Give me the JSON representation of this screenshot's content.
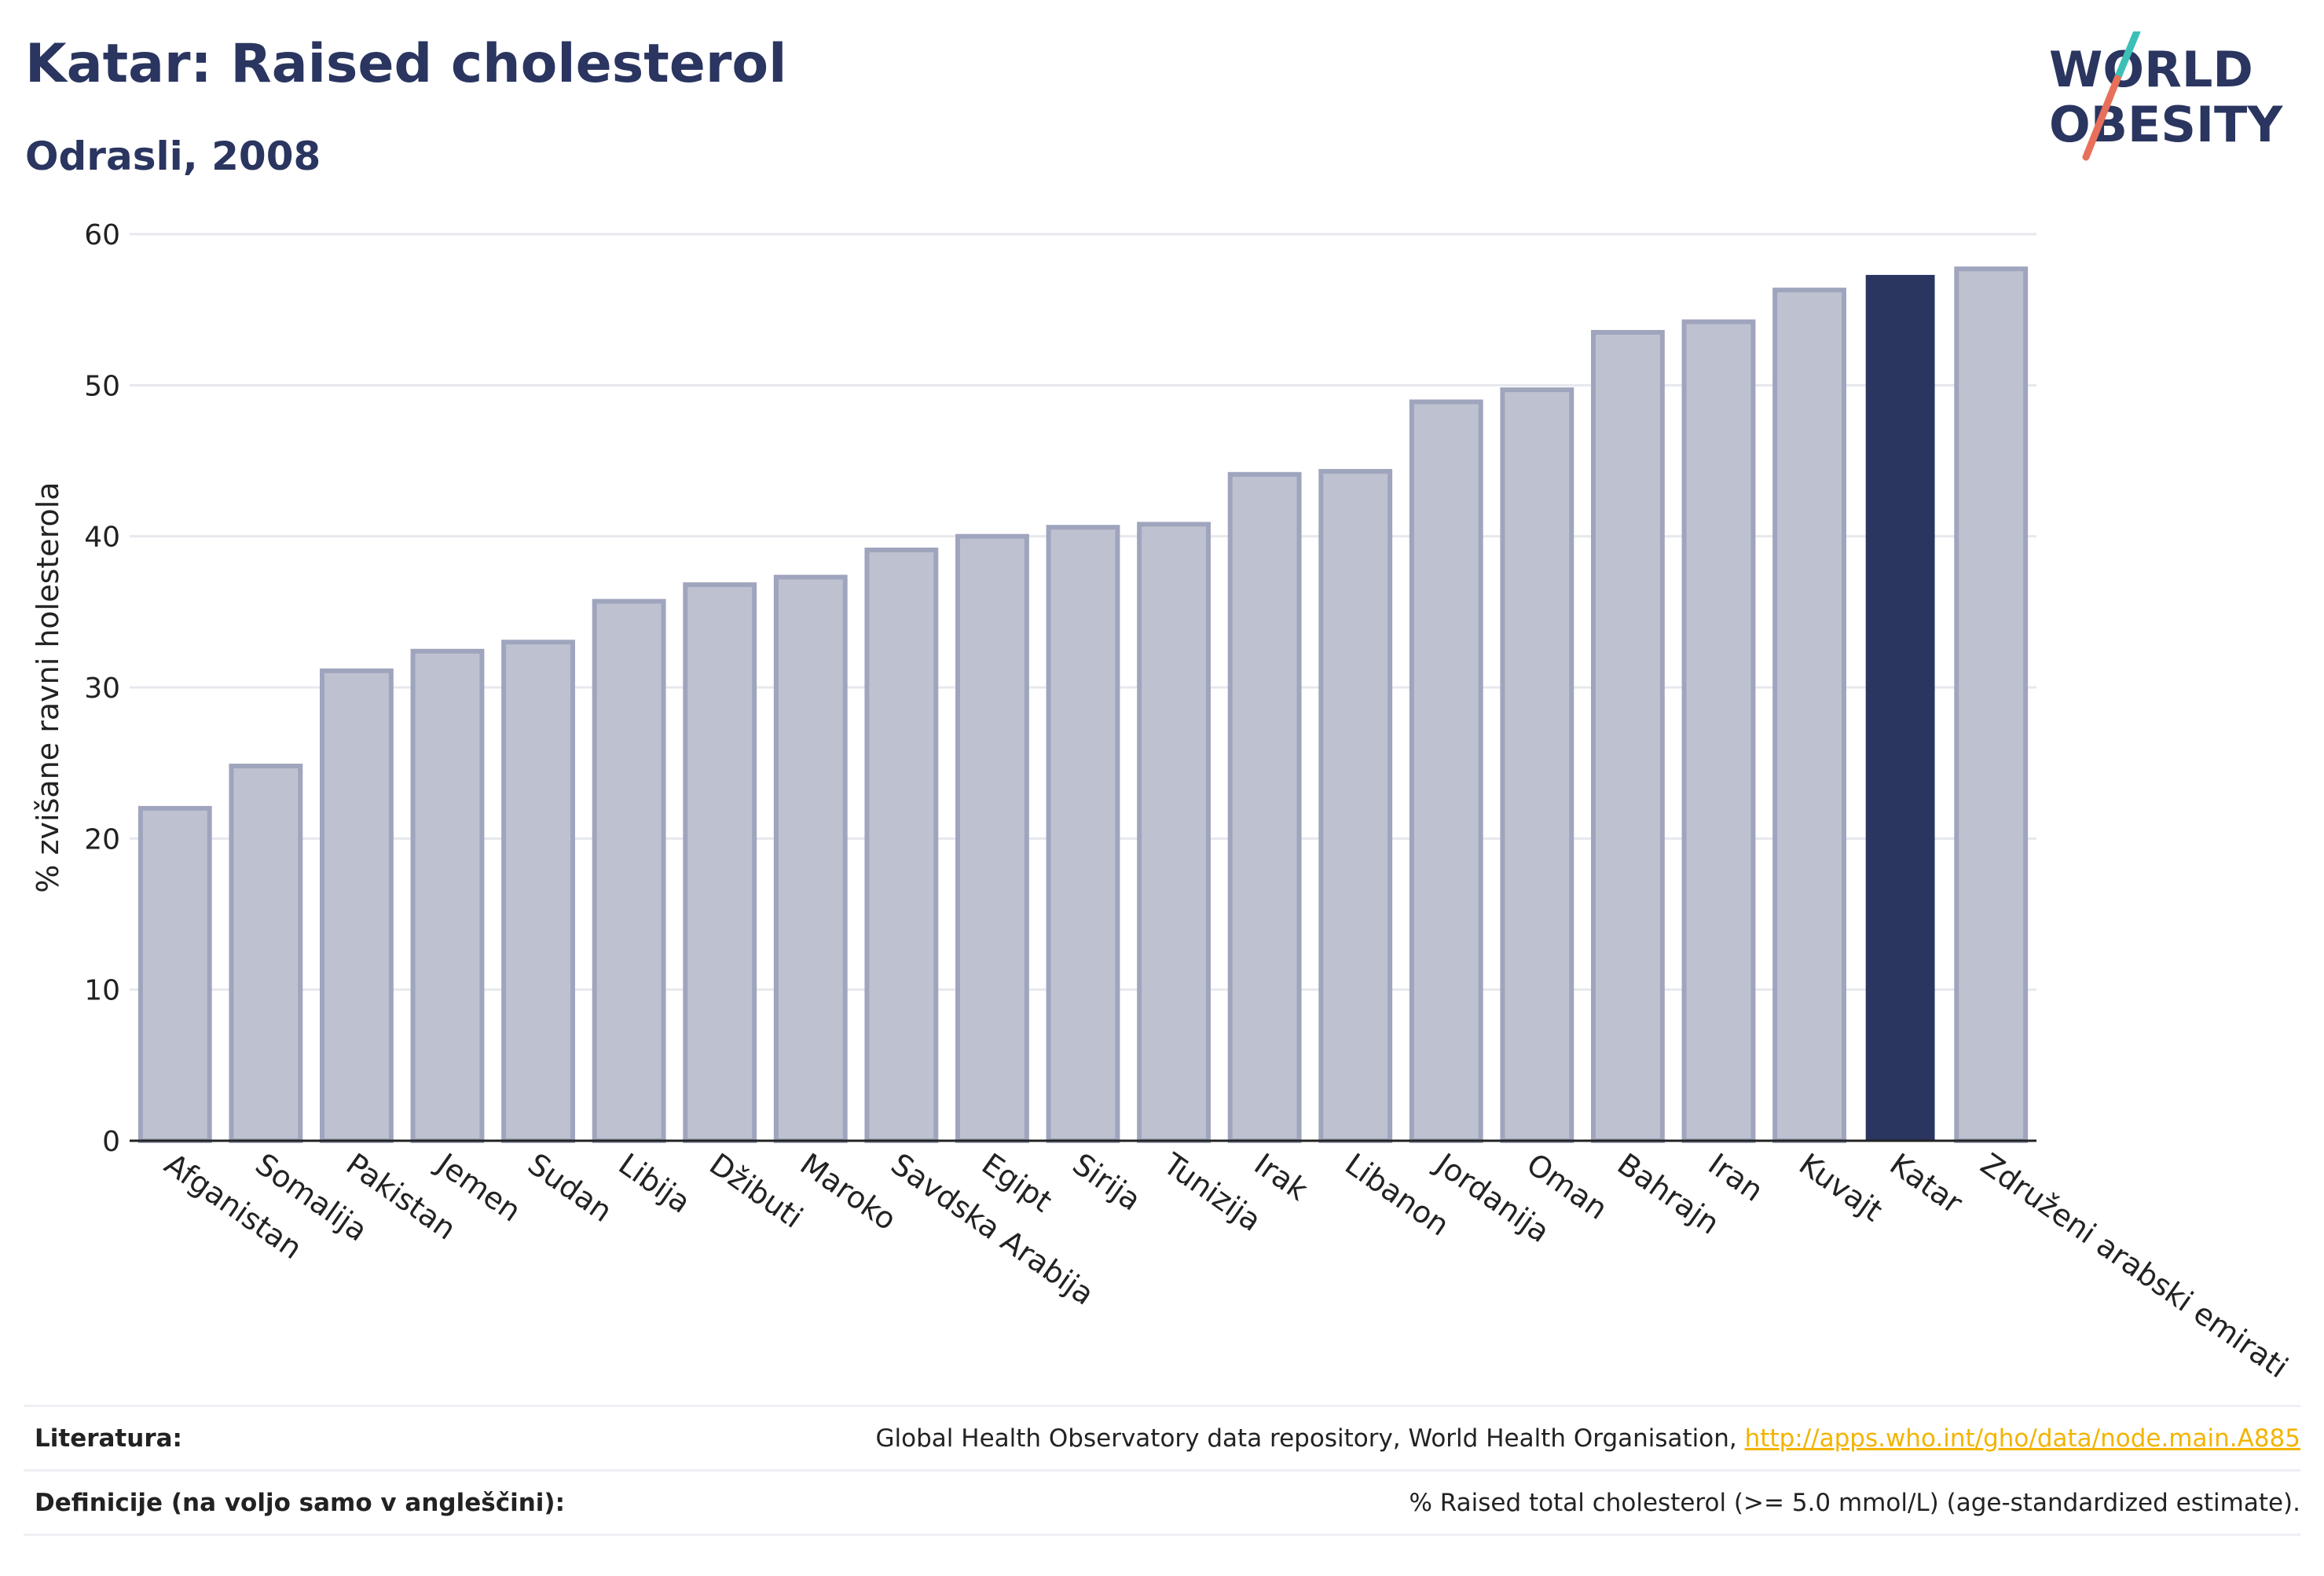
{
  "header": {
    "title": "Katar: Raised cholesterol",
    "subtitle": "Odrasli, 2008"
  },
  "logo": {
    "line1": "WORLD",
    "line2": "OBESITY"
  },
  "colors": {
    "highlight": "#2a3560",
    "bar_fill": "#bec2d0",
    "bar_stroke": "#9fa5bd",
    "grid": "#e6e8ee",
    "accent_teal": "#3dbfb8",
    "accent_coral": "#e8705a",
    "link": "#f2b400"
  },
  "chart_data": {
    "type": "bar",
    "categories": [
      "Afganistan",
      "Somalija",
      "Pakistan",
      "Jemen",
      "Sudan",
      "Libija",
      "Džibuti",
      "Maroko",
      "Savdska Arabija",
      "Egipt",
      "Sirija",
      "Tunizija",
      "Irak",
      "Libanon",
      "Jordanija",
      "Oman",
      "Bahrajn",
      "Iran",
      "Kuvajt",
      "Katar",
      "Združeni arabski emirati"
    ],
    "values": [
      22.0,
      24.8,
      31.1,
      32.4,
      33.0,
      35.7,
      36.8,
      37.3,
      39.1,
      40.0,
      40.6,
      40.8,
      44.1,
      44.3,
      48.9,
      49.7,
      53.5,
      54.2,
      56.3,
      57.3,
      57.7
    ],
    "highlight": "Katar",
    "ylabel": "% zvišane ravni holesterola",
    "ylim": [
      0,
      60
    ],
    "yticks": [
      0,
      10,
      20,
      30,
      40,
      50,
      60
    ],
    "grid": true
  },
  "footer": {
    "references_label": "Literatura:",
    "references_text": "Global Health Observatory data repository, World Health Organisation, ",
    "references_link": "http://apps.who.int/gho/data/node.main.A885",
    "definitions_label": "Definicije (na voljo samo v angleščini):",
    "definitions_text": "% Raised total cholesterol (>= 5.0 mmol/L) (age-standardized estimate)."
  }
}
